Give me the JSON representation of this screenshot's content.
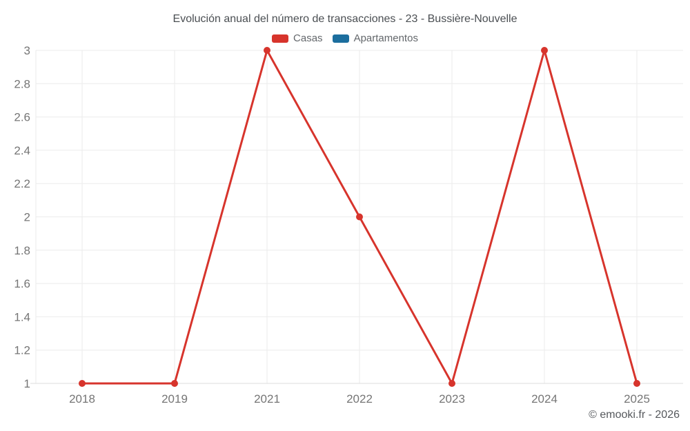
{
  "page": {
    "title": "Evolución anual del número de transacciones - 23 - Bussière-Nouvelle"
  },
  "legend": {
    "items": [
      {
        "label": "Casas",
        "color": "#d7342c"
      },
      {
        "label": "Apartamentos",
        "color": "#1c6e9e"
      }
    ]
  },
  "footer": {
    "text": "© emooki.fr - 2026"
  },
  "chart_data": {
    "type": "line",
    "title": "Evolución anual del número de transacciones - 23 - Bussière-Nouvelle",
    "categories": [
      "2018",
      "2019",
      "2021",
      "2022",
      "2023",
      "2024",
      "2025"
    ],
    "series": [
      {
        "name": "Casas",
        "color": "#d7342c",
        "values": [
          1,
          1,
          3,
          2,
          1,
          3,
          1
        ],
        "marker": "circle"
      },
      {
        "name": "Apartamentos",
        "color": "#1c6e9e",
        "values": []
      }
    ],
    "xlabel": "",
    "ylabel": "",
    "ylim": [
      1,
      3
    ],
    "ytick_step": 0.2,
    "ytick_labels": [
      "1",
      "1.2",
      "1.4",
      "1.6",
      "1.8",
      "2",
      "2.2",
      "2.4",
      "2.6",
      "2.8",
      "3"
    ],
    "grid": true,
    "legend_position": "top",
    "colors": {
      "grid": "#ebebeb",
      "axis": "#dcdcdc",
      "tick_text": "#757575"
    }
  }
}
